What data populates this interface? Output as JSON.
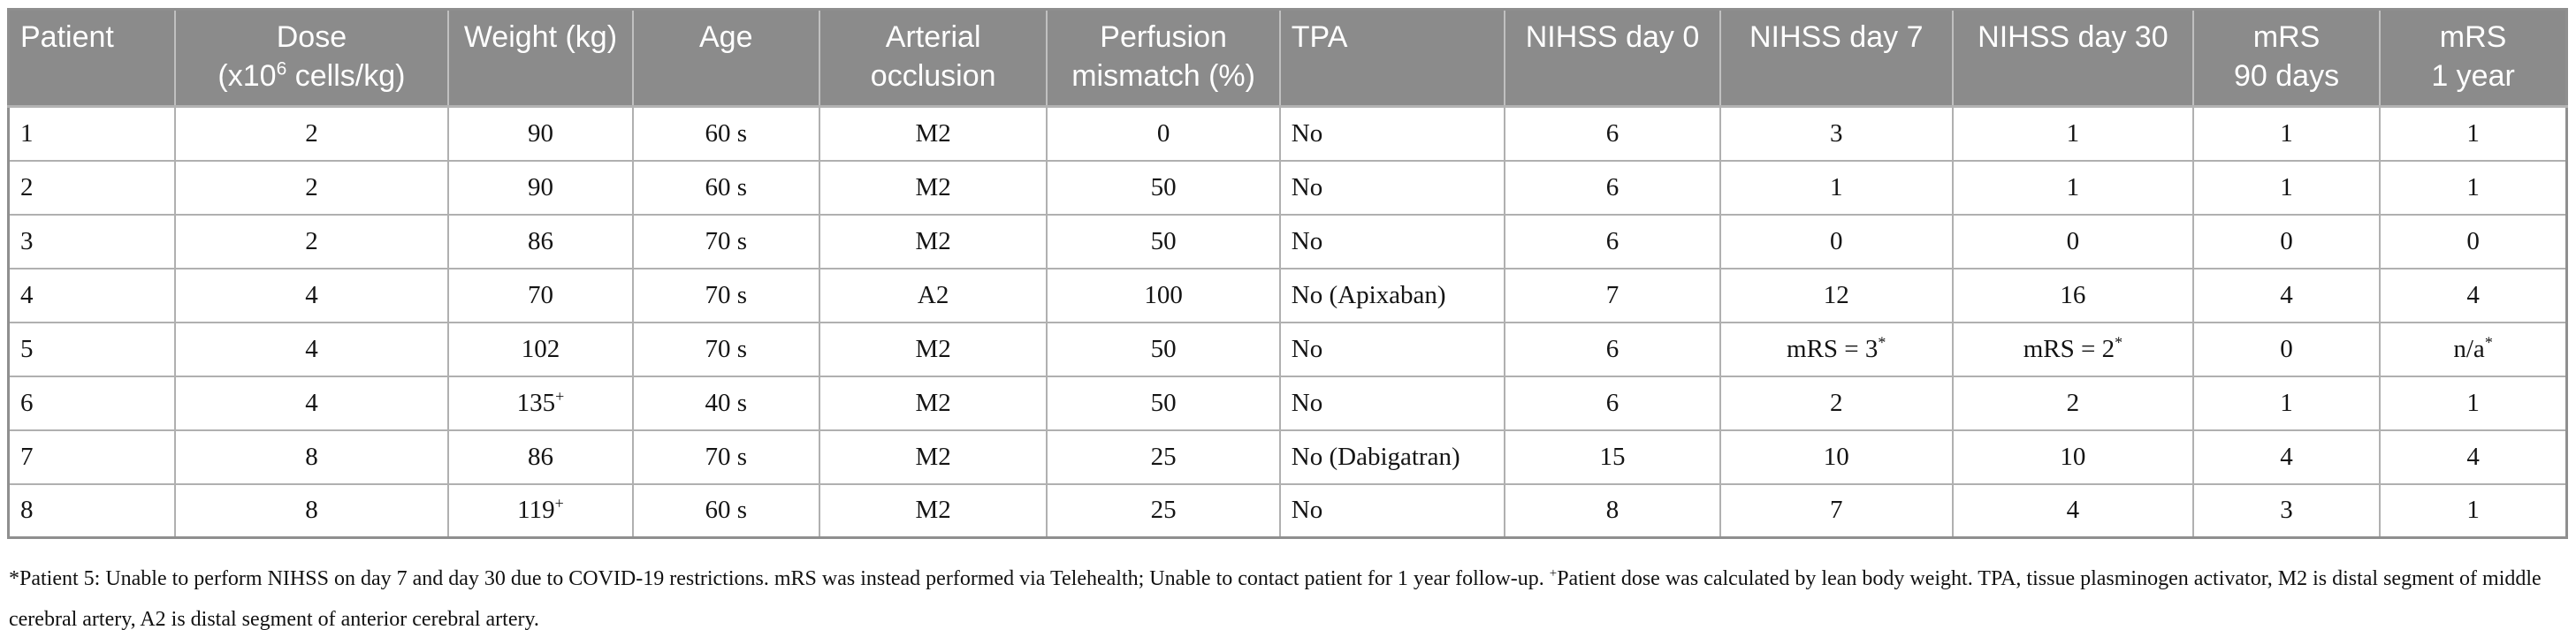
{
  "colors": {
    "header_background": "#8b8b8b",
    "header_text": "#ffffff",
    "cell_text": "#141414",
    "grid_border": "#b0b0b0",
    "outer_border": "#8f8f8f"
  },
  "table": {
    "columns": [
      {
        "id": "patient",
        "label": "Patient",
        "align": "left"
      },
      {
        "id": "dose",
        "label": "Dose\n(x10^6 cells/kg)",
        "align": "center"
      },
      {
        "id": "weight-kg",
        "label": "Weight (kg)",
        "align": "center"
      },
      {
        "id": "age",
        "label": "Age",
        "align": "center"
      },
      {
        "id": "arterial-occlusion",
        "label": "Arterial\nocclusion",
        "align": "center"
      },
      {
        "id": "perfusion-mismatch",
        "label": "Perfusion\nmismatch (%)",
        "align": "center"
      },
      {
        "id": "tpa",
        "label": "TPA",
        "align": "left"
      },
      {
        "id": "nihss-day-0",
        "label": "NIHSS day 0",
        "align": "center"
      },
      {
        "id": "nihss-day-7",
        "label": "NIHSS day 7",
        "align": "center"
      },
      {
        "id": "nihss-day-30",
        "label": "NIHSS day 30",
        "align": "center"
      },
      {
        "id": "mrs-90-days",
        "label": "mRS\n90 days",
        "align": "center"
      },
      {
        "id": "mrs-1-year",
        "label": "mRS\n1 year",
        "align": "center"
      }
    ],
    "rows": [
      [
        "1",
        "2",
        "90",
        "60 s",
        "M2",
        "0",
        "No",
        "6",
        "3",
        "1",
        "1",
        "1"
      ],
      [
        "2",
        "2",
        "90",
        "60 s",
        "M2",
        "50",
        "No",
        "6",
        "1",
        "1",
        "1",
        "1"
      ],
      [
        "3",
        "2",
        "86",
        "70 s",
        "M2",
        "50",
        "No",
        "6",
        "0",
        "0",
        "0",
        "0"
      ],
      [
        "4",
        "4",
        "70",
        "70 s",
        "A2",
        "100",
        "No (Apixaban)",
        "7",
        "12",
        "16",
        "4",
        "4"
      ],
      [
        "5",
        "4",
        "102",
        "70 s",
        "M2",
        "50",
        "No",
        "6",
        "mRS = 3^*",
        "mRS = 2^*",
        "0",
        "n/a^*"
      ],
      [
        "6",
        "4",
        "135^+",
        "40 s",
        "M2",
        "50",
        "No",
        "6",
        "2",
        "2",
        "1",
        "1"
      ],
      [
        "7",
        "8",
        "86",
        "70 s",
        "M2",
        "25",
        "No (Dabigatran)",
        "15",
        "10",
        "10",
        "4",
        "4"
      ],
      [
        "8",
        "8",
        "119^+",
        "60 s",
        "M2",
        "25",
        "No",
        "8",
        "7",
        "4",
        "3",
        "1"
      ]
    ]
  },
  "footnote": "*Patient 5: Unable to perform NIHSS on day 7 and day 30 due to COVID-19 restrictions. mRS was instead performed via Telehealth; Unable to contact patient for 1 year follow-up. ^+Patient dose was calculated by lean body weight. TPA, tissue plasminogen activator, M2 is distal segment of middle cerebral artery, A2 is distal segment of anterior cerebral artery."
}
